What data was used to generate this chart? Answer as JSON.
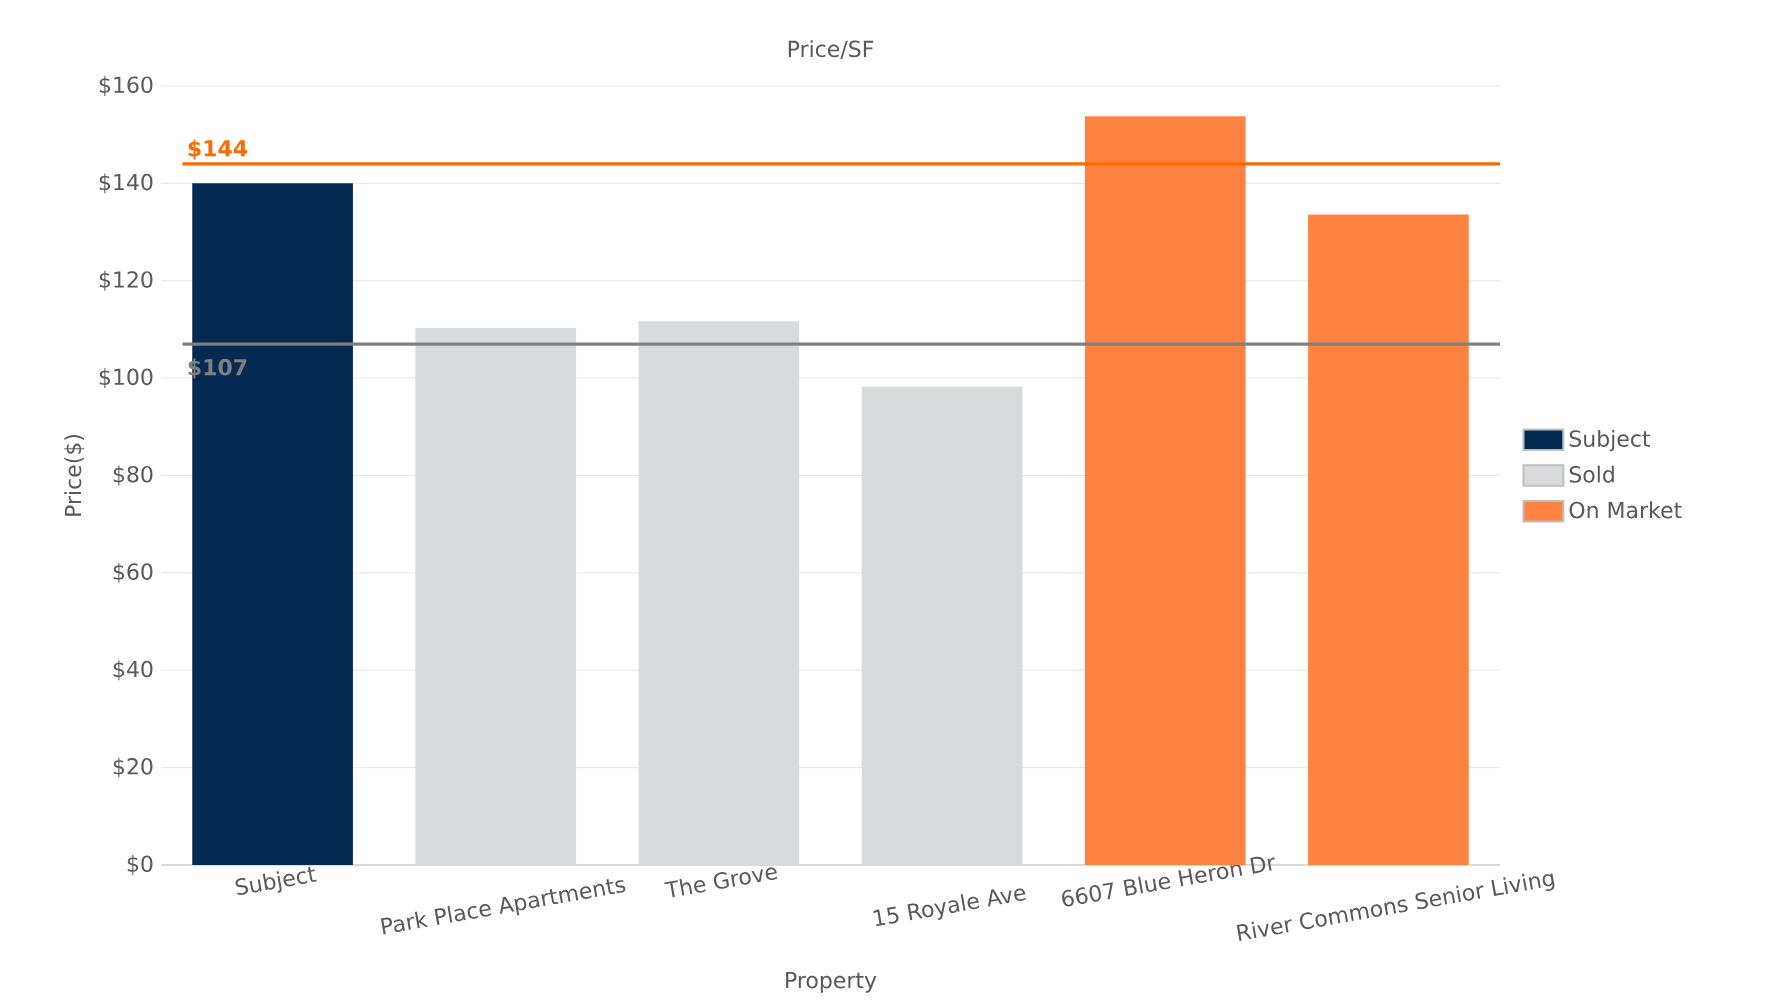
{
  "chart_data": {
    "type": "bar",
    "title": "Price/SF",
    "xlabel": "Property",
    "ylabel": "Price($)",
    "categories": [
      "Subject",
      "Park Place Apartments",
      "The Grove",
      "15 Royale Ave",
      "6607 Blue Heron Dr",
      "River Commons Senior Living"
    ],
    "series": [
      {
        "name": "Subject",
        "color": "#052a52",
        "values": [
          140,
          null,
          null,
          null,
          null,
          null
        ]
      },
      {
        "name": "Sold",
        "color": "#d9dadb",
        "values": [
          null,
          110.3,
          111.7,
          98.3,
          null,
          null
        ]
      },
      {
        "name": "On Market",
        "color": "#ff8340",
        "values": [
          null,
          null,
          null,
          null,
          153.8,
          133.6
        ]
      }
    ],
    "ylim": [
      0,
      160
    ],
    "yticks": [
      {
        "value": 0,
        "label": "$0"
      },
      {
        "value": 20,
        "label": "$20"
      },
      {
        "value": 40,
        "label": "$40"
      },
      {
        "value": 60,
        "label": "$60"
      },
      {
        "value": 80,
        "label": "$80"
      },
      {
        "value": 100,
        "label": "$100"
      },
      {
        "value": 120,
        "label": "$120"
      },
      {
        "value": 140,
        "label": "$140"
      },
      {
        "value": 160,
        "label": "$160"
      }
    ],
    "ref_lines": [
      {
        "axis": "y",
        "value": 144,
        "label": "$144",
        "color": "#ff6a00"
      },
      {
        "axis": "y",
        "value": 107,
        "label": "$107",
        "color": "#808080"
      }
    ],
    "grid": "y",
    "legend": "right"
  }
}
